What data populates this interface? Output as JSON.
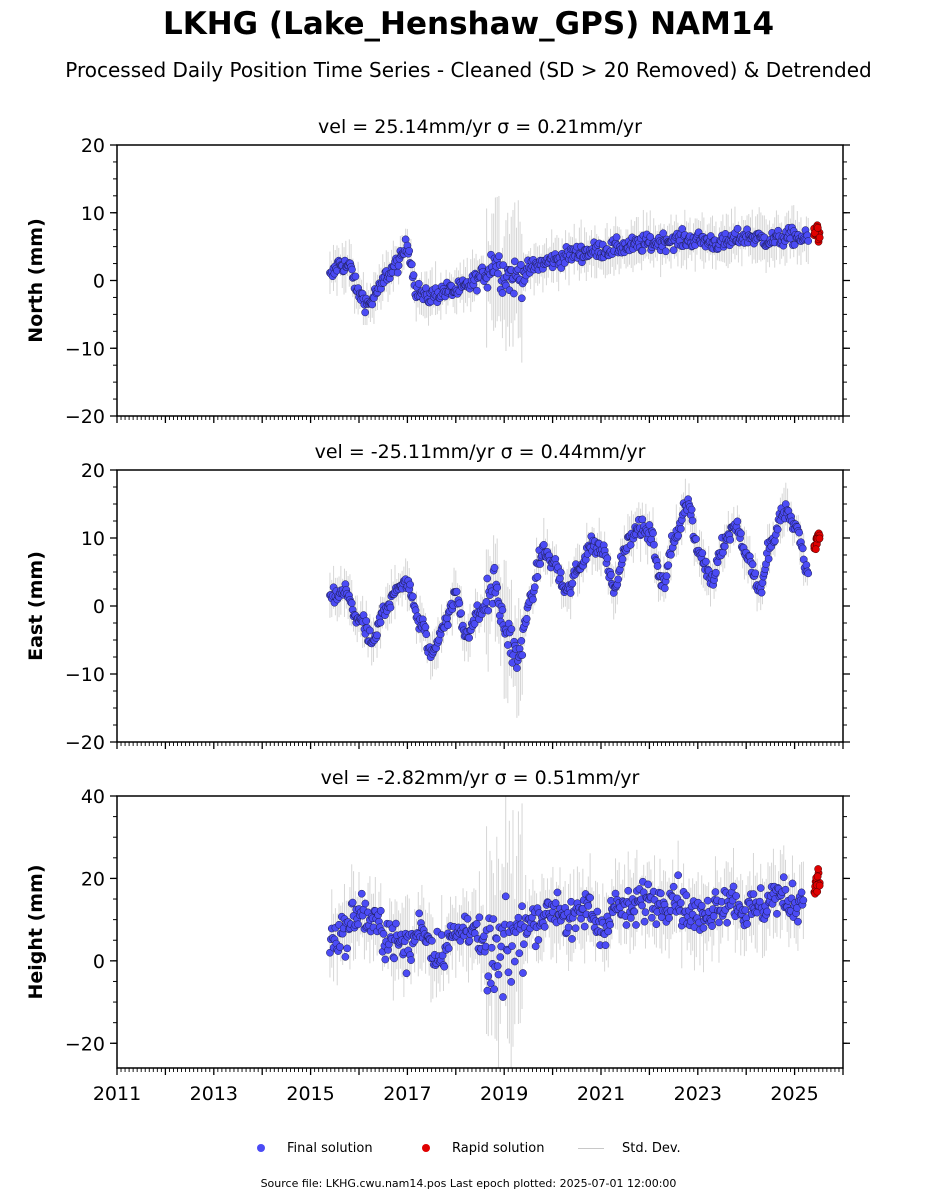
{
  "figure": {
    "title": "LKHG (Lake_Henshaw_GPS) NAM14",
    "subtitle": "Processed Daily Position Time Series - Cleaned (SD > 20 Removed) & Detrended",
    "source_note": "Source file: LKHG.cwu.nam14.pos  Last epoch plotted: 2025-07-01 12:00:00"
  },
  "legend": {
    "final": "Final solution",
    "rapid": "Rapid solution",
    "std": "Std. Dev."
  },
  "colors": {
    "final": "#4b4bf5",
    "rapid": "#e00000",
    "std": "#8a8a8a"
  },
  "chart_data": [
    {
      "type": "scatter",
      "title": "vel = 25.14mm/yr   σ = 0.21mm/yr",
      "ylabel": "North (mm)",
      "xlim": [
        2011,
        2026
      ],
      "ylim": [
        -20,
        20
      ],
      "yticks": [
        -20,
        -10,
        0,
        10,
        20
      ],
      "series": [
        {
          "name": "Final solution",
          "x": [
            2015.4,
            2015.6,
            2015.8,
            2016.0,
            2016.2,
            2016.4,
            2016.6,
            2016.8,
            2017.0,
            2017.2,
            2017.4,
            2017.6,
            2017.8,
            2018.0,
            2018.2,
            2018.4,
            2018.6,
            2018.8,
            2019.0,
            2019.2,
            2019.4,
            2019.6,
            2019.8,
            2020.0,
            2020.5,
            2021.0,
            2021.5,
            2022.0,
            2022.5,
            2023.0,
            2023.5,
            2024.0,
            2024.5,
            2025.0,
            2025.3
          ],
          "y": [
            0.5,
            2.5,
            2.0,
            -2.0,
            -3.5,
            -1.5,
            1.0,
            2.5,
            5.0,
            -1.5,
            -2.5,
            -2.0,
            -1.5,
            -1.5,
            -1.0,
            0.0,
            1.0,
            3.0,
            1.0,
            0.5,
            1.0,
            2.0,
            2.5,
            3.0,
            4.0,
            4.5,
            5.0,
            5.5,
            6.0,
            6.0,
            5.5,
            6.5,
            6.0,
            6.5,
            6.0
          ]
        },
        {
          "name": "Rapid solution",
          "x": [
            2025.42,
            2025.46,
            2025.5
          ],
          "y": [
            7.0,
            7.8,
            6.5
          ]
        }
      ]
    },
    {
      "type": "scatter",
      "title": "vel = -25.11mm/yr   σ = 0.44mm/yr",
      "ylabel": "East (mm)",
      "xlim": [
        2011,
        2026
      ],
      "ylim": [
        -20,
        20
      ],
      "yticks": [
        -20,
        -10,
        0,
        10,
        20
      ],
      "series": [
        {
          "name": "Final solution",
          "x": [
            2015.4,
            2015.7,
            2016.0,
            2016.3,
            2016.5,
            2016.8,
            2017.0,
            2017.3,
            2017.5,
            2017.8,
            2018.0,
            2018.2,
            2018.5,
            2018.8,
            2019.0,
            2019.3,
            2019.5,
            2019.8,
            2020.0,
            2020.3,
            2020.5,
            2020.8,
            2021.0,
            2021.3,
            2021.5,
            2021.8,
            2022.0,
            2022.3,
            2022.5,
            2022.8,
            2023.0,
            2023.3,
            2023.5,
            2023.8,
            2024.0,
            2024.3,
            2024.5,
            2024.8,
            2025.0,
            2025.3
          ],
          "y": [
            1.0,
            2.0,
            -2.0,
            -5.5,
            -1.0,
            3.0,
            3.0,
            -3.0,
            -7.0,
            -2.0,
            1.5,
            -4.0,
            -1.0,
            3.0,
            -3.0,
            -8.0,
            0.0,
            8.0,
            6.5,
            2.0,
            5.0,
            9.0,
            8.5,
            3.0,
            9.0,
            11.5,
            10.5,
            3.0,
            10.0,
            15.0,
            8.0,
            4.0,
            9.0,
            12.0,
            7.5,
            2.5,
            9.0,
            14.0,
            12.0,
            5.0
          ]
        },
        {
          "name": "Rapid solution",
          "x": [
            2025.42,
            2025.46,
            2025.5
          ],
          "y": [
            8.5,
            9.8,
            10.5
          ]
        }
      ]
    },
    {
      "type": "scatter",
      "title": "vel = -2.82mm/yr   σ = 0.51mm/yr",
      "ylabel": "Height (mm)",
      "xlim": [
        2011,
        2026
      ],
      "ylim": [
        -26,
        40
      ],
      "yticks": [
        -20,
        0,
        20,
        40
      ],
      "xticks": [
        2011,
        2013,
        2015,
        2017,
        2019,
        2021,
        2023,
        2025
      ],
      "series": [
        {
          "name": "Final solution",
          "x": [
            2015.4,
            2015.7,
            2016.0,
            2016.3,
            2016.6,
            2017.0,
            2017.3,
            2017.6,
            2018.0,
            2018.3,
            2018.6,
            2018.9,
            2019.2,
            2019.5,
            2019.8,
            2020.1,
            2020.4,
            2020.7,
            2021.0,
            2021.3,
            2021.6,
            2021.9,
            2022.2,
            2022.5,
            2022.8,
            2023.1,
            2023.4,
            2023.7,
            2024.0,
            2024.3,
            2024.6,
            2024.9,
            2025.2
          ],
          "y": [
            5.0,
            7.0,
            12.0,
            9.0,
            6.0,
            3.0,
            8.0,
            2.0,
            6.0,
            9.0,
            2.0,
            0.0,
            5.0,
            9.0,
            11.0,
            13.0,
            9.0,
            13.0,
            8.0,
            13.0,
            12.0,
            15.0,
            14.0,
            16.0,
            12.0,
            10.0,
            14.0,
            15.0,
            12.0,
            13.0,
            16.0,
            14.0,
            15.0
          ]
        },
        {
          "name": "Rapid solution",
          "x": [
            2025.42,
            2025.46,
            2025.5
          ],
          "y": [
            16.0,
            18.5,
            20.0
          ]
        }
      ]
    }
  ]
}
